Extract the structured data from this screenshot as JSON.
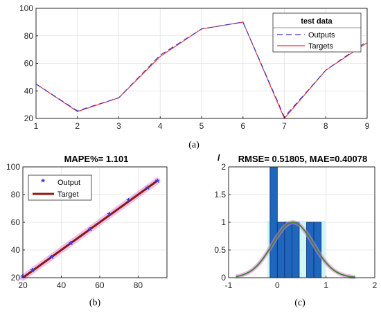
{
  "chart_data": [
    {
      "type": "line",
      "panel_label": "a",
      "xlim": [
        1,
        9
      ],
      "ylim": [
        20,
        100
      ],
      "xticks": [
        1,
        2,
        3,
        4,
        5,
        6,
        7,
        8,
        9
      ],
      "yticks": [
        20,
        40,
        60,
        80,
        100
      ],
      "grid": true,
      "legend": {
        "title": "test data",
        "placement": "top-right"
      },
      "x": [
        1,
        2,
        3,
        4,
        5,
        6,
        7,
        8,
        9
      ],
      "series": [
        {
          "name": "Outputs",
          "values": [
            45,
            25.5,
            35,
            66,
            85,
            90,
            21,
            55,
            76
          ],
          "color": "#3a3acd",
          "style": "dashed"
        },
        {
          "name": "Targets",
          "values": [
            45,
            25,
            35,
            65,
            85,
            90,
            20,
            55,
            75
          ],
          "color": "#f03030",
          "style": "solid"
        }
      ]
    },
    {
      "type": "scatter",
      "panel_label": "b",
      "title": "MAPE%= 1.101",
      "xlim": [
        20,
        95
      ],
      "ylim": [
        20,
        100
      ],
      "xticks": [
        20,
        40,
        60,
        80
      ],
      "yticks": [
        20,
        40,
        60,
        80,
        100
      ],
      "grid": true,
      "legend": {
        "placement": "top-left"
      },
      "series": [
        {
          "name": "Output",
          "marker": "asterisk",
          "color": "#3b3bd8",
          "x": [
            20,
            25,
            35,
            45,
            55,
            65,
            75,
            85,
            90
          ],
          "y": [
            21,
            25.5,
            35,
            45,
            55,
            66,
            76,
            85,
            90
          ]
        },
        {
          "name": "Target",
          "marker": "line",
          "color": "#8b1a0d",
          "x": [
            20,
            90
          ],
          "y": [
            20,
            90
          ]
        }
      ]
    },
    {
      "type": "bar",
      "panel_label": "c",
      "title": "RMSE= 0.51805, MAE=0.40078",
      "xlim": [
        -1,
        2
      ],
      "ylim": [
        0,
        2
      ],
      "xticks": [
        -1,
        0,
        1,
        2
      ],
      "yticks": [
        0,
        0.5,
        1,
        1.5,
        2
      ],
      "grid": true,
      "bin_edges": [
        -0.15,
        0,
        0.15,
        0.3,
        0.45,
        0.6,
        0.75,
        0.9
      ],
      "counts": [
        2,
        1,
        1,
        1,
        0,
        1,
        1
      ],
      "fit_curve": {
        "type": "normal",
        "mean": 0.32,
        "sd": 0.42,
        "peak": 1.0,
        "x_range": [
          -0.85,
          1.6
        ]
      },
      "bar_color": "#1f66bd",
      "curve_color": "#3a8a2a"
    }
  ],
  "captions": {
    "a": "(a)",
    "b": "(b)",
    "c": "(c)"
  },
  "stray_mark": "/"
}
